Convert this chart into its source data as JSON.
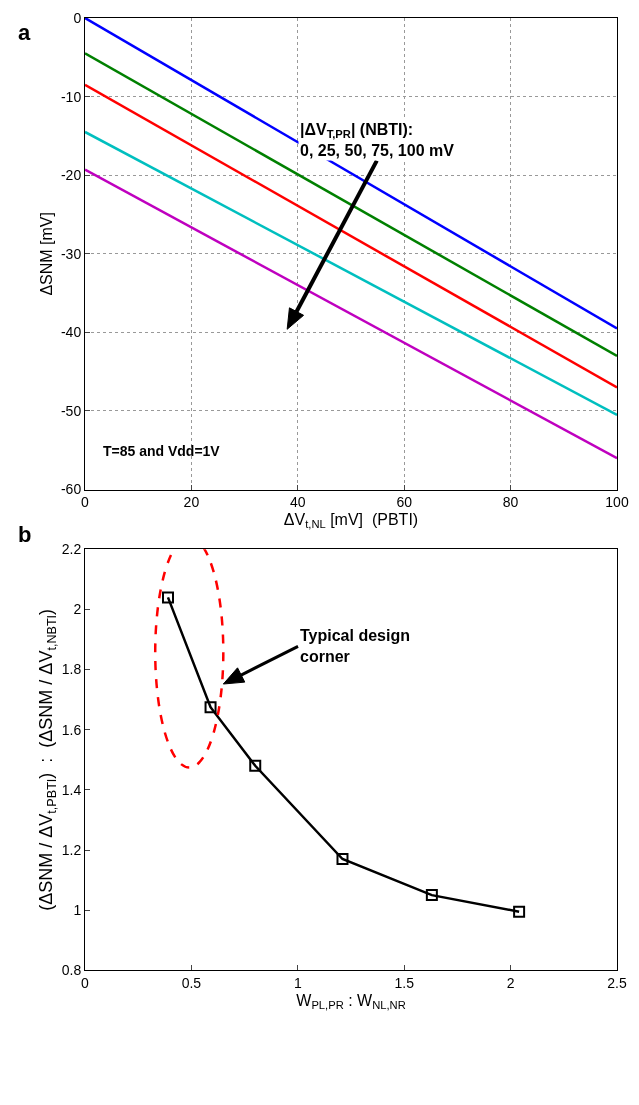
{
  "chart_data": [
    {
      "type": "line",
      "title": "a",
      "xlabel": "ΔV$_{t,NL}$ [mV]  (PBTI)",
      "ylabel": "ΔSNM [mV]",
      "x": [
        0,
        100
      ],
      "series": [
        {
          "color": "#0000ff",
          "values": [
            0,
            -39.5
          ]
        },
        {
          "color": "#008000",
          "values": [
            -4.5,
            -43
          ]
        },
        {
          "color": "#ff0000",
          "values": [
            -8.5,
            -47
          ]
        },
        {
          "color": "#00bfbf",
          "values": [
            -14.5,
            -50.5
          ]
        },
        {
          "color": "#bf00bf",
          "values": [
            -19.3,
            -56
          ]
        }
      ],
      "xlim": [
        0,
        100
      ],
      "xticks": [
        0,
        20,
        40,
        60,
        80,
        100
      ],
      "ylim": [
        -60,
        0
      ],
      "yticks": [
        -60,
        -50,
        -40,
        -30,
        -20,
        -10,
        0
      ],
      "grid": true,
      "marker": "none",
      "line_style": "solid",
      "annotations": [
        "|ΔV$_{T,PR}$| (NBTI):\n0, 25, 50, 75, 100 mV",
        "T=85 and Vdd=1V"
      ]
    },
    {
      "type": "line",
      "title": "b",
      "xlabel": "W$_{PL,PR}$ : W$_{NL,NR}$",
      "ylabel": "(ΔSNM / ΔV$_{t,PBTI}$)  :  (ΔSNM / ΔV$_{t,NBTI}$)",
      "x": [
        0.39,
        0.59,
        0.8,
        1.21,
        1.63,
        2.04
      ],
      "series": [
        {
          "color": "#000000",
          "values": [
            2.04,
            1.675,
            1.48,
            1.17,
            1.05,
            0.995
          ]
        }
      ],
      "xlim": [
        0,
        2.5
      ],
      "xticks": [
        0,
        0.5,
        1,
        1.5,
        2,
        2.5
      ],
      "ylim": [
        0.8,
        2.2
      ],
      "yticks": [
        0.8,
        1,
        1.2,
        1.4,
        1.6,
        1.8,
        2,
        2.2
      ],
      "grid": false,
      "marker": "square",
      "line_style": "solid",
      "annotations": [
        "Typical design\ncorner"
      ]
    }
  ]
}
